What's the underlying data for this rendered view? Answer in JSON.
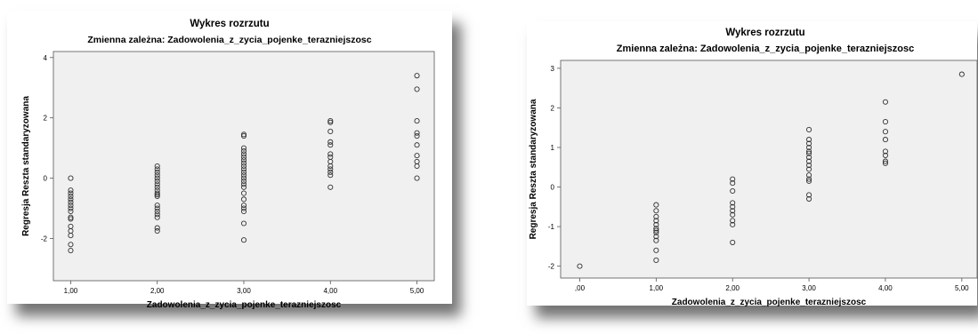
{
  "chart_data": [
    {
      "type": "scatter",
      "title": "Wykres rozrzutu",
      "subtitle": "Zmienna zależna: Zadowolenia_z_zycia_pojenke_terazniejszosc",
      "xlabel": "Zadowolenia_z_zycia_pojenke_terazniejszosc",
      "ylabel": "Regresja Reszta standaryzowana",
      "xlim": [
        0.8,
        5.2
      ],
      "ylim": [
        -3.4,
        4.2
      ],
      "xticks": [
        "1,00",
        "2,00",
        "3,00",
        "4,00",
        "5,00"
      ],
      "xtick_values": [
        1,
        2,
        3,
        4,
        5
      ],
      "yticks": [
        "-2",
        "0",
        "2",
        "4"
      ],
      "ytick_values": [
        -2,
        0,
        2,
        4
      ],
      "grid": false,
      "points": [
        {
          "x": 1,
          "y": 0.0
        },
        {
          "x": 1,
          "y": -0.4
        },
        {
          "x": 1,
          "y": -0.5
        },
        {
          "x": 1,
          "y": -0.6
        },
        {
          "x": 1,
          "y": -0.7
        },
        {
          "x": 1,
          "y": -0.8
        },
        {
          "x": 1,
          "y": -0.9
        },
        {
          "x": 1,
          "y": -1.0
        },
        {
          "x": 1,
          "y": -1.1
        },
        {
          "x": 1,
          "y": -1.3
        },
        {
          "x": 1,
          "y": -1.35
        },
        {
          "x": 1,
          "y": -1.6
        },
        {
          "x": 1,
          "y": -1.75
        },
        {
          "x": 1,
          "y": -1.9
        },
        {
          "x": 1,
          "y": -2.2
        },
        {
          "x": 1,
          "y": -2.4
        },
        {
          "x": 2,
          "y": 0.4
        },
        {
          "x": 2,
          "y": 0.3
        },
        {
          "x": 2,
          "y": 0.2
        },
        {
          "x": 2,
          "y": 0.1
        },
        {
          "x": 2,
          "y": 0.0
        },
        {
          "x": 2,
          "y": -0.1
        },
        {
          "x": 2,
          "y": -0.2
        },
        {
          "x": 2,
          "y": -0.3
        },
        {
          "x": 2,
          "y": -0.4
        },
        {
          "x": 2,
          "y": -0.5
        },
        {
          "x": 2,
          "y": -0.55
        },
        {
          "x": 2,
          "y": -0.6
        },
        {
          "x": 2,
          "y": -0.9
        },
        {
          "x": 2,
          "y": -1.0
        },
        {
          "x": 2,
          "y": -1.1
        },
        {
          "x": 2,
          "y": -1.2
        },
        {
          "x": 2,
          "y": -1.3
        },
        {
          "x": 2,
          "y": -1.65
        },
        {
          "x": 2,
          "y": -1.75
        },
        {
          "x": 3,
          "y": 1.45
        },
        {
          "x": 3,
          "y": 1.4
        },
        {
          "x": 3,
          "y": 1.0
        },
        {
          "x": 3,
          "y": 0.9
        },
        {
          "x": 3,
          "y": 0.8
        },
        {
          "x": 3,
          "y": 0.7
        },
        {
          "x": 3,
          "y": 0.6
        },
        {
          "x": 3,
          "y": 0.5
        },
        {
          "x": 3,
          "y": 0.4
        },
        {
          "x": 3,
          "y": 0.3
        },
        {
          "x": 3,
          "y": 0.2
        },
        {
          "x": 3,
          "y": 0.1
        },
        {
          "x": 3,
          "y": 0.0
        },
        {
          "x": 3,
          "y": -0.1
        },
        {
          "x": 3,
          "y": -0.2
        },
        {
          "x": 3,
          "y": -0.3
        },
        {
          "x": 3,
          "y": -0.5
        },
        {
          "x": 3,
          "y": -0.7
        },
        {
          "x": 3,
          "y": -0.9
        },
        {
          "x": 3,
          "y": -1.0
        },
        {
          "x": 3,
          "y": -1.1
        },
        {
          "x": 3,
          "y": -1.5
        },
        {
          "x": 3,
          "y": -2.05
        },
        {
          "x": 4,
          "y": 1.9
        },
        {
          "x": 4,
          "y": 1.85
        },
        {
          "x": 4,
          "y": 1.55
        },
        {
          "x": 4,
          "y": 1.2
        },
        {
          "x": 4,
          "y": 1.1
        },
        {
          "x": 4,
          "y": 0.8
        },
        {
          "x": 4,
          "y": 0.7
        },
        {
          "x": 4,
          "y": 0.55
        },
        {
          "x": 4,
          "y": 0.4
        },
        {
          "x": 4,
          "y": 0.3
        },
        {
          "x": 4,
          "y": 0.2
        },
        {
          "x": 4,
          "y": 0.1
        },
        {
          "x": 4,
          "y": -0.3
        },
        {
          "x": 5,
          "y": 3.4
        },
        {
          "x": 5,
          "y": 2.95
        },
        {
          "x": 5,
          "y": 1.9
        },
        {
          "x": 5,
          "y": 1.5
        },
        {
          "x": 5,
          "y": 1.4
        },
        {
          "x": 5,
          "y": 1.1
        },
        {
          "x": 5,
          "y": 0.75
        },
        {
          "x": 5,
          "y": 0.55
        },
        {
          "x": 5,
          "y": 0.4
        },
        {
          "x": 5,
          "y": 0.0
        }
      ],
      "style": {
        "plot_bg": "#f0f0f0",
        "marker_stroke": "#333333"
      }
    },
    {
      "type": "scatter",
      "title": "Wykres rozrzutu",
      "subtitle": "Zmienna zależna: Zadowolenia_z_zycia_pojenke_terazniejszosc",
      "xlabel": "Zadowolenia_z_zycia_pojenke_terazniejszosc",
      "ylabel": "Regresja Reszta standaryzowana",
      "xlim": [
        -0.25,
        5.2
      ],
      "ylim": [
        -2.3,
        3.2
      ],
      "xticks": [
        ",00",
        "1,00",
        "2,00",
        "3,00",
        "4,00",
        "5,00"
      ],
      "xtick_values": [
        0,
        1,
        2,
        3,
        4,
        5
      ],
      "yticks": [
        "-2",
        "-1",
        "0",
        "1",
        "2",
        "3"
      ],
      "ytick_values": [
        -2,
        -1,
        0,
        1,
        2,
        3
      ],
      "grid": false,
      "points": [
        {
          "x": 0,
          "y": -2.0
        },
        {
          "x": 1,
          "y": -0.45
        },
        {
          "x": 1,
          "y": -0.6
        },
        {
          "x": 1,
          "y": -0.75
        },
        {
          "x": 1,
          "y": -0.85
        },
        {
          "x": 1,
          "y": -0.95
        },
        {
          "x": 1,
          "y": -1.05
        },
        {
          "x": 1,
          "y": -1.1
        },
        {
          "x": 1,
          "y": -1.15
        },
        {
          "x": 1,
          "y": -1.25
        },
        {
          "x": 1,
          "y": -1.35
        },
        {
          "x": 1,
          "y": -1.6
        },
        {
          "x": 1,
          "y": -1.85
        },
        {
          "x": 2,
          "y": 0.2
        },
        {
          "x": 2,
          "y": 0.1
        },
        {
          "x": 2,
          "y": -0.1
        },
        {
          "x": 2,
          "y": -0.4
        },
        {
          "x": 2,
          "y": -0.5
        },
        {
          "x": 2,
          "y": -0.6
        },
        {
          "x": 2,
          "y": -0.7
        },
        {
          "x": 2,
          "y": -0.85
        },
        {
          "x": 2,
          "y": -0.95
        },
        {
          "x": 2,
          "y": -1.4
        },
        {
          "x": 3,
          "y": 1.45
        },
        {
          "x": 3,
          "y": 1.2
        },
        {
          "x": 3,
          "y": 1.1
        },
        {
          "x": 3,
          "y": 1.0
        },
        {
          "x": 3,
          "y": 0.9
        },
        {
          "x": 3,
          "y": 0.85
        },
        {
          "x": 3,
          "y": 0.75
        },
        {
          "x": 3,
          "y": 0.65
        },
        {
          "x": 3,
          "y": 0.55
        },
        {
          "x": 3,
          "y": 0.45
        },
        {
          "x": 3,
          "y": 0.3
        },
        {
          "x": 3,
          "y": 0.2
        },
        {
          "x": 3,
          "y": 0.15
        },
        {
          "x": 3,
          "y": -0.2
        },
        {
          "x": 3,
          "y": -0.3
        },
        {
          "x": 4,
          "y": 2.15
        },
        {
          "x": 4,
          "y": 1.65
        },
        {
          "x": 4,
          "y": 1.4
        },
        {
          "x": 4,
          "y": 1.2
        },
        {
          "x": 4,
          "y": 0.9
        },
        {
          "x": 4,
          "y": 0.8
        },
        {
          "x": 4,
          "y": 0.65
        },
        {
          "x": 4,
          "y": 0.6
        },
        {
          "x": 5,
          "y": 2.85
        }
      ],
      "style": {
        "plot_bg": "#f0f0f0",
        "marker_stroke": "#333333"
      }
    }
  ]
}
